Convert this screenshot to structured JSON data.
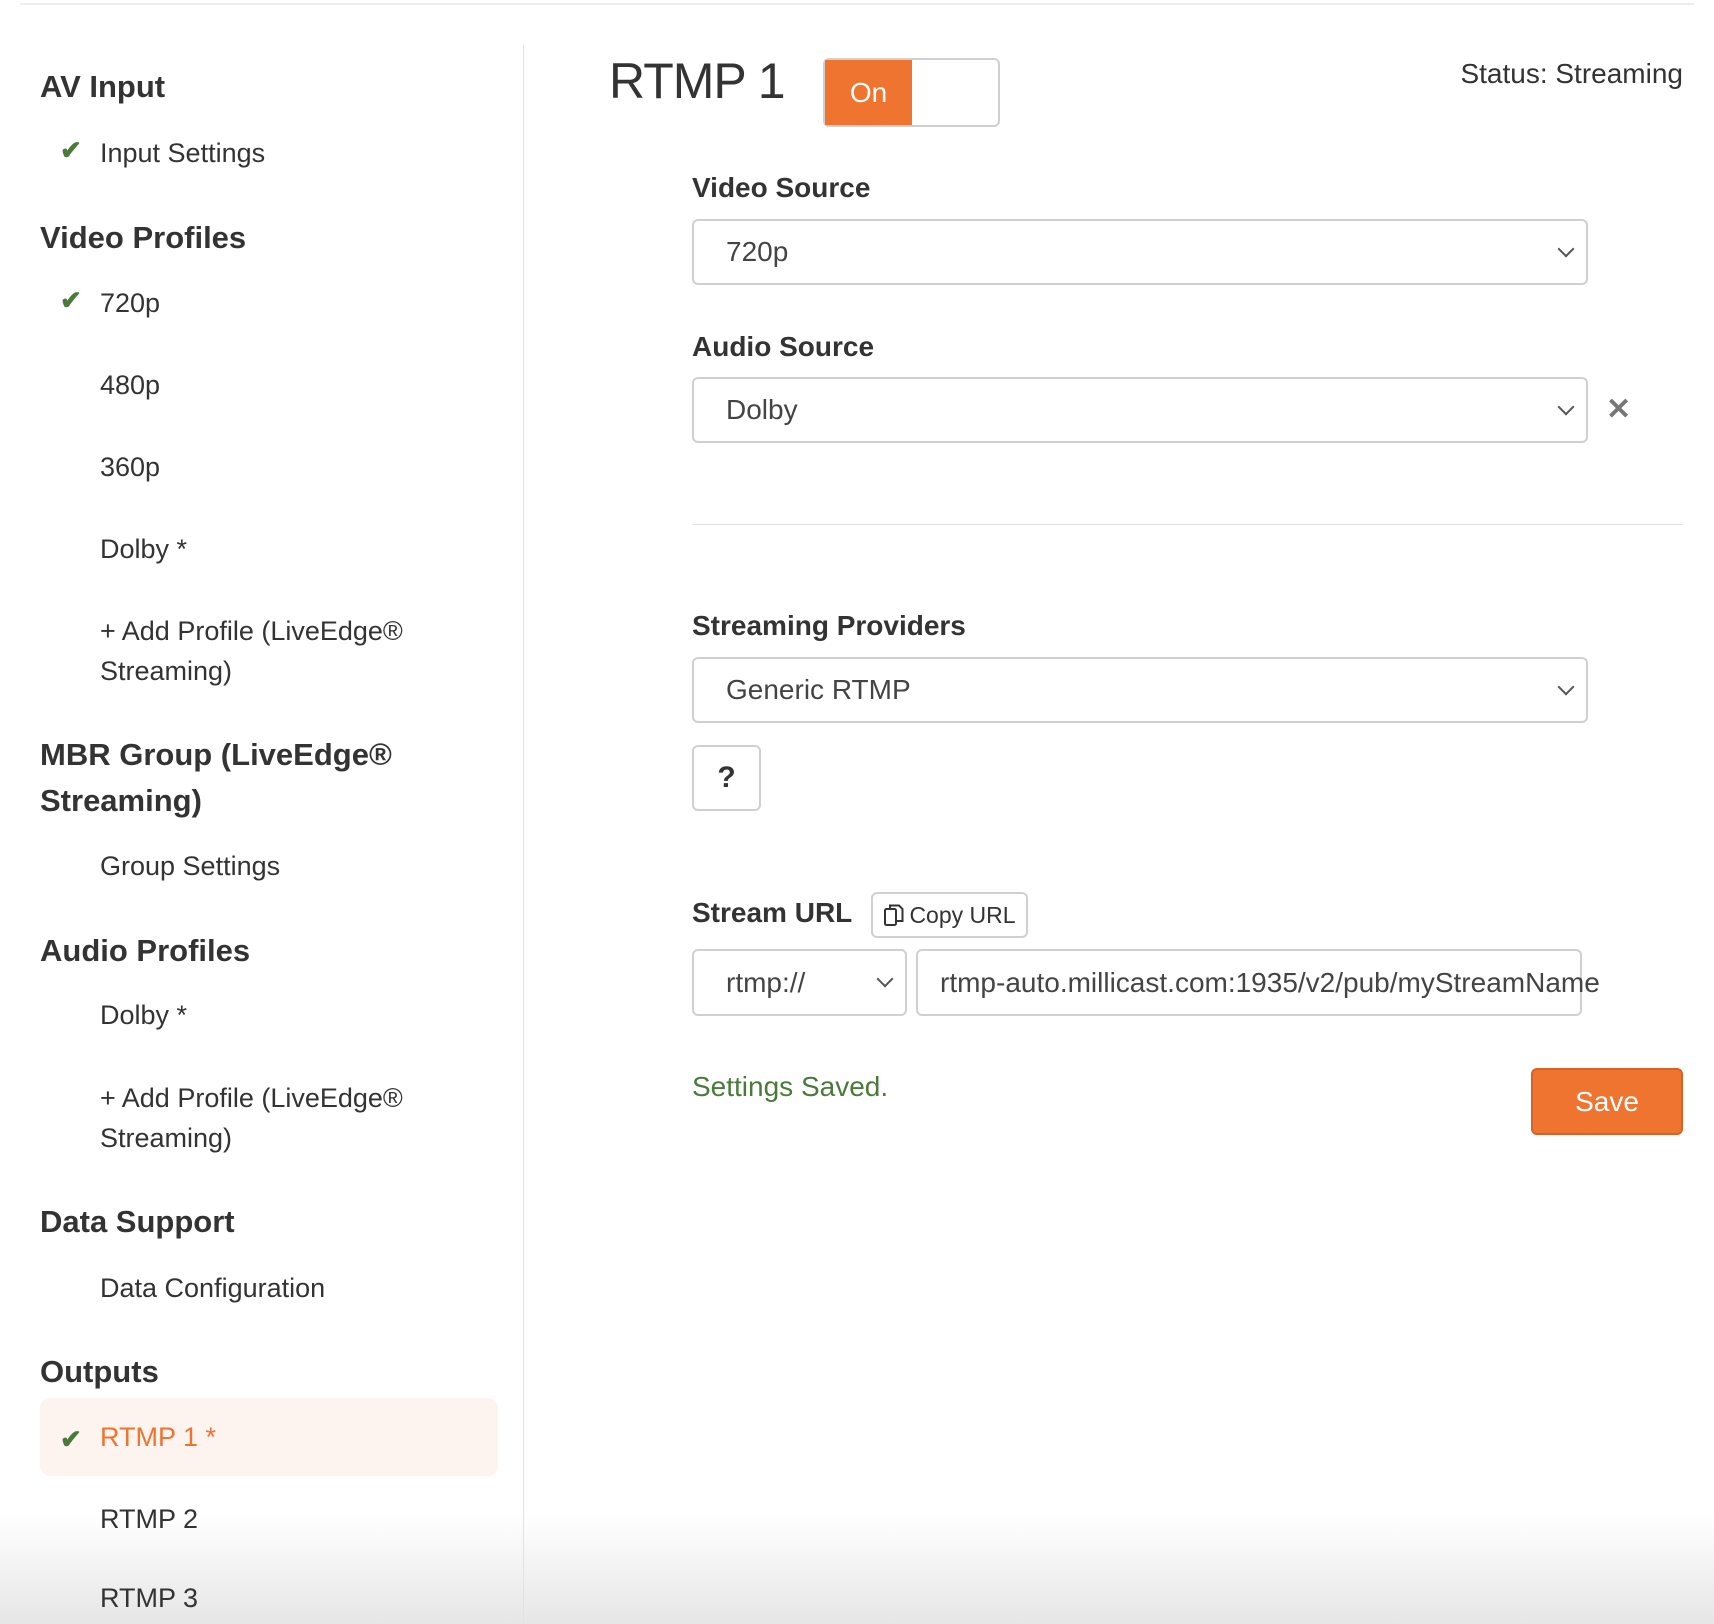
{
  "sidebar": {
    "sections": [
      {
        "heading": "AV Input",
        "items": [
          {
            "label": "Input Settings",
            "checked": true
          }
        ]
      },
      {
        "heading": "Video Profiles",
        "items": [
          {
            "label": "720p",
            "checked": true
          },
          {
            "label": "480p"
          },
          {
            "label": "360p"
          },
          {
            "label": "Dolby *"
          },
          {
            "label_line1": "+ Add Profile (LiveEdge®",
            "label_line2": "Streaming)"
          }
        ]
      },
      {
        "heading_line1": "MBR Group (LiveEdge®",
        "heading_line2": "Streaming)",
        "items": [
          {
            "label": "Group Settings"
          }
        ]
      },
      {
        "heading": "Audio Profiles",
        "items": [
          {
            "label": "Dolby *"
          },
          {
            "label_line1": "+ Add Profile (LiveEdge®",
            "label_line2": "Streaming)"
          }
        ]
      },
      {
        "heading": "Data Support",
        "items": [
          {
            "label": "Data Configuration"
          }
        ]
      },
      {
        "heading": "Outputs",
        "items": [
          {
            "label": "RTMP 1 *",
            "checked": true,
            "active": true
          },
          {
            "label": "RTMP 2"
          },
          {
            "label": "RTMP 3"
          }
        ]
      }
    ]
  },
  "main": {
    "title": "RTMP 1",
    "toggle_label": "On",
    "toggle_on": true,
    "status": "Status: Streaming",
    "video_source": {
      "label": "Video Source",
      "value": "720p"
    },
    "audio_source": {
      "label": "Audio Source",
      "value": "Dolby"
    },
    "streaming_providers": {
      "label": "Streaming Providers",
      "value": "Generic RTMP"
    },
    "help_label": "?",
    "stream_url": {
      "label": "Stream URL",
      "copy_label": "Copy URL",
      "protocol": "rtmp://",
      "value": "rtmp-auto.millicast.com:1935/v2/pub/myStreamName"
    },
    "saved_message": "Settings Saved.",
    "save_label": "Save"
  },
  "colors": {
    "accent": "#ee7430",
    "success": "#4a7a3a",
    "active_bg": "#fdf4f0"
  }
}
